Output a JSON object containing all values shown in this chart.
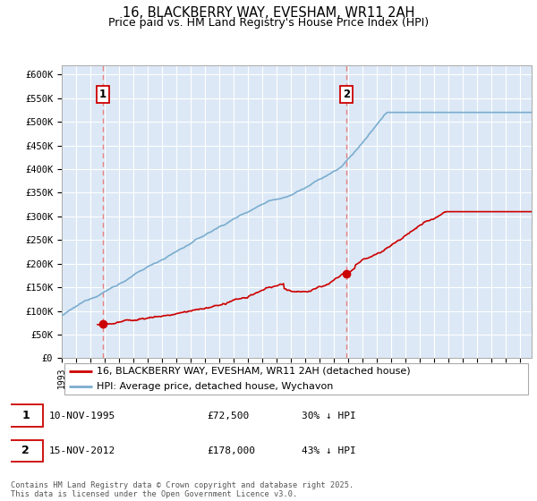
{
  "title": "16, BLACKBERRY WAY, EVESHAM, WR11 2AH",
  "subtitle": "Price paid vs. HM Land Registry's House Price Index (HPI)",
  "legend_label_red": "16, BLACKBERRY WAY, EVESHAM, WR11 2AH (detached house)",
  "legend_label_blue": "HPI: Average price, detached house, Wychavon",
  "footer": "Contains HM Land Registry data © Crown copyright and database right 2025.\nThis data is licensed under the Open Government Licence v3.0.",
  "annotation1_label": "1",
  "annotation1_date": "10-NOV-1995",
  "annotation1_price": "£72,500",
  "annotation1_hpi": "30% ↓ HPI",
  "annotation2_label": "2",
  "annotation2_date": "15-NOV-2012",
  "annotation2_price": "£178,000",
  "annotation2_hpi": "43% ↓ HPI",
  "transaction1_x": 1995.86,
  "transaction1_y": 72500,
  "transaction2_x": 2012.88,
  "transaction2_y": 178000,
  "ylim": [
    0,
    620000
  ],
  "xlim_left": 1993.0,
  "xlim_right": 2025.8,
  "red_color": "#cc0000",
  "blue_color": "#7aadcf",
  "bg_color": "#dce8f5",
  "grid_color": "#ffffff",
  "vline_color": "#e87070",
  "title_fontsize": 10.5,
  "subtitle_fontsize": 9,
  "tick_fontsize": 7.5,
  "legend_fontsize": 8,
  "annotation_fontsize": 8,
  "footer_fontsize": 6.2
}
